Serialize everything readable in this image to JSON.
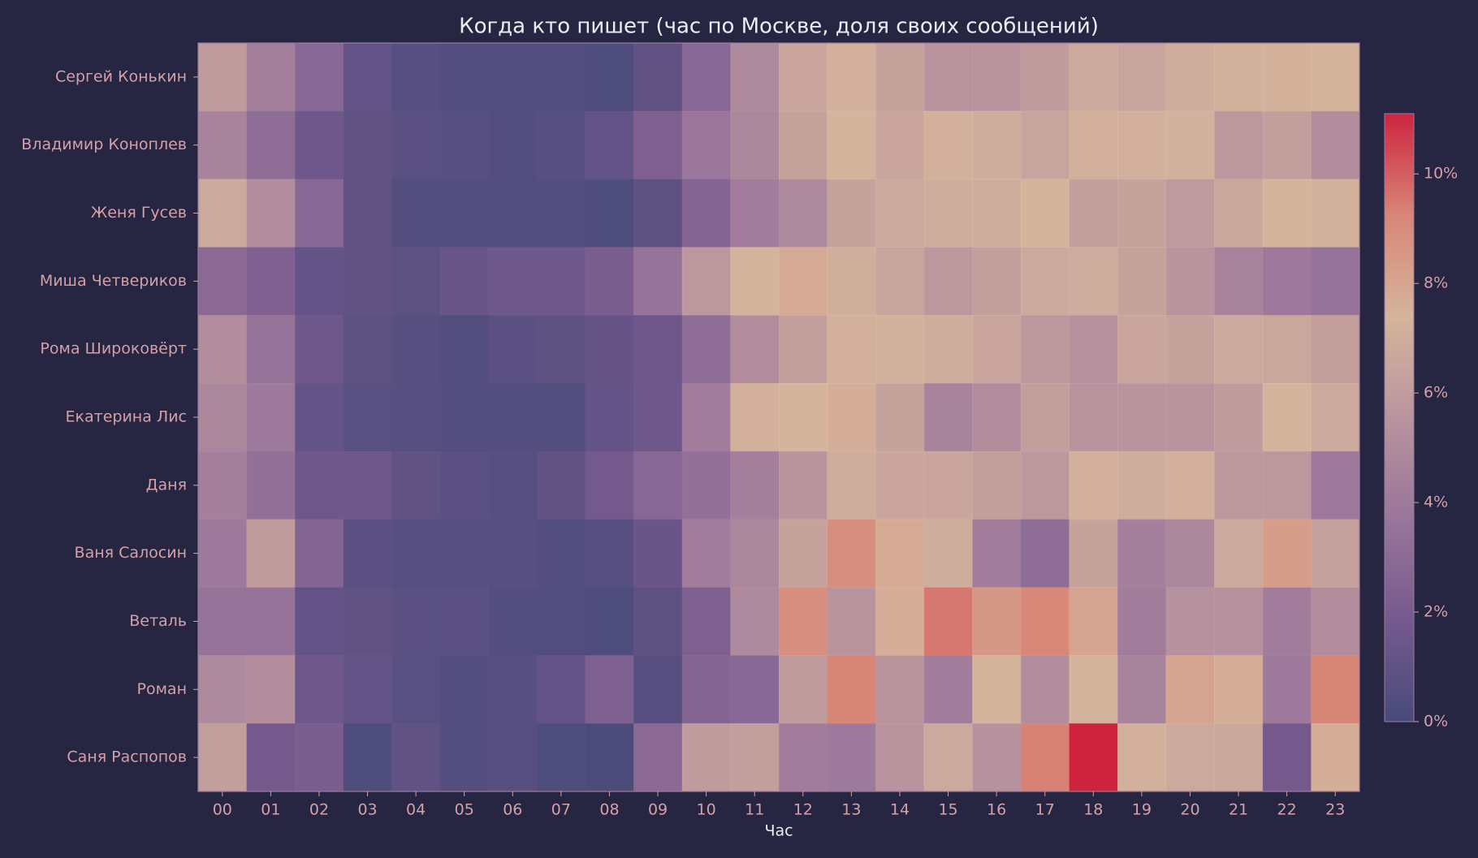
{
  "chart_data": {
    "type": "heatmap",
    "title": "Когда кто пишет (час по Москве, доля своих сообщений)",
    "xlabel": "Час",
    "x": [
      "00",
      "01",
      "02",
      "03",
      "04",
      "05",
      "06",
      "07",
      "08",
      "09",
      "10",
      "11",
      "12",
      "13",
      "14",
      "15",
      "16",
      "17",
      "18",
      "19",
      "20",
      "21",
      "22",
      "23"
    ],
    "categories": [
      "Сергей Конькин",
      "Владимир Коноплев",
      "Женя Гусев",
      "Миша Четвериков",
      "Рома Широковёрт",
      "Екатерина Лис",
      "Даня",
      "Ваня Салосин",
      "Веталь",
      "Роман",
      "Саня Распопов"
    ],
    "values": [
      [
        6.0,
        4.3,
        2.8,
        1.2,
        0.6,
        0.4,
        0.4,
        0.4,
        0.3,
        1.0,
        2.8,
        5.0,
        6.6,
        7.2,
        6.4,
        5.6,
        5.6,
        6.0,
        6.8,
        6.5,
        7.0,
        7.3,
        7.5,
        7.4
      ],
      [
        4.6,
        3.2,
        1.6,
        1.0,
        0.8,
        0.6,
        0.5,
        0.6,
        1.2,
        2.4,
        3.8,
        4.8,
        6.4,
        7.4,
        6.6,
        7.2,
        7.0,
        6.5,
        7.2,
        7.2,
        7.3,
        5.8,
        6.2,
        5.2
      ],
      [
        6.8,
        5.2,
        2.8,
        1.0,
        0.5,
        0.4,
        0.4,
        0.4,
        0.3,
        0.9,
        2.6,
        4.2,
        5.0,
        6.4,
        6.8,
        7.0,
        7.0,
        7.4,
        6.2,
        6.4,
        5.9,
        6.7,
        7.4,
        7.3
      ],
      [
        3.0,
        2.4,
        1.2,
        1.0,
        0.9,
        1.4,
        1.6,
        1.6,
        2.2,
        3.6,
        5.8,
        7.4,
        7.8,
        7.1,
        6.5,
        5.8,
        6.2,
        6.8,
        6.9,
        6.4,
        5.6,
        4.6,
        4.0,
        3.6
      ],
      [
        5.2,
        3.6,
        1.6,
        0.9,
        0.6,
        0.4,
        0.8,
        0.9,
        1.3,
        1.5,
        3.2,
        5.2,
        6.2,
        7.2,
        7.3,
        7.0,
        6.6,
        5.8,
        5.4,
        6.6,
        6.4,
        6.8,
        6.7,
        6.2
      ],
      [
        4.8,
        4.0,
        1.2,
        0.7,
        0.6,
        0.5,
        0.5,
        0.5,
        1.2,
        1.6,
        4.2,
        7.2,
        7.4,
        7.6,
        6.4,
        4.6,
        5.2,
        6.2,
        5.6,
        5.6,
        5.6,
        6.0,
        7.4,
        6.8
      ],
      [
        4.4,
        3.4,
        1.6,
        1.6,
        1.0,
        0.8,
        0.6,
        1.0,
        1.8,
        2.8,
        3.4,
        4.4,
        5.6,
        7.0,
        6.6,
        6.6,
        6.2,
        5.8,
        7.2,
        7.0,
        7.2,
        5.8,
        5.8,
        4.0
      ],
      [
        4.0,
        6.0,
        2.6,
        0.8,
        0.6,
        0.6,
        0.6,
        0.5,
        0.6,
        1.4,
        4.2,
        4.8,
        6.4,
        8.9,
        7.8,
        7.0,
        4.2,
        3.2,
        6.4,
        4.4,
        4.8,
        6.8,
        8.3,
        6.3
      ],
      [
        3.6,
        3.6,
        1.2,
        1.0,
        0.8,
        0.8,
        0.5,
        0.4,
        0.3,
        0.9,
        2.4,
        5.0,
        8.9,
        5.6,
        7.6,
        9.5,
        8.5,
        9.1,
        8.0,
        4.2,
        5.4,
        5.4,
        4.2,
        5.2
      ],
      [
        5.0,
        5.2,
        1.6,
        1.2,
        0.7,
        0.5,
        0.6,
        1.2,
        2.4,
        0.6,
        2.6,
        2.9,
        6.0,
        9.2,
        5.6,
        4.2,
        7.4,
        5.2,
        7.4,
        4.6,
        8.0,
        7.6,
        4.0,
        9.2
      ],
      [
        6.2,
        1.8,
        2.2,
        0.3,
        1.0,
        0.5,
        0.6,
        0.3,
        0.2,
        3.0,
        6.0,
        6.2,
        4.2,
        4.0,
        5.6,
        6.8,
        5.4,
        9.3,
        11.1,
        7.2,
        6.8,
        6.7,
        1.8,
        7.6
      ]
    ],
    "colormap": [
      "#4b4f7f",
      "#7e5f96",
      "#a57ea4",
      "#c9a0a8",
      "#e8c4a6",
      "#eb907d",
      "#e0243f"
    ],
    "zlim": [
      0,
      11.1
    ],
    "zticks": [
      {
        "value": 0,
        "label": "0%"
      },
      {
        "value": 2,
        "label": "2%"
      },
      {
        "value": 4,
        "label": "4%"
      },
      {
        "value": 6,
        "label": "6%"
      },
      {
        "value": 8,
        "label": "8%"
      },
      {
        "value": 10,
        "label": "10%"
      }
    ]
  }
}
